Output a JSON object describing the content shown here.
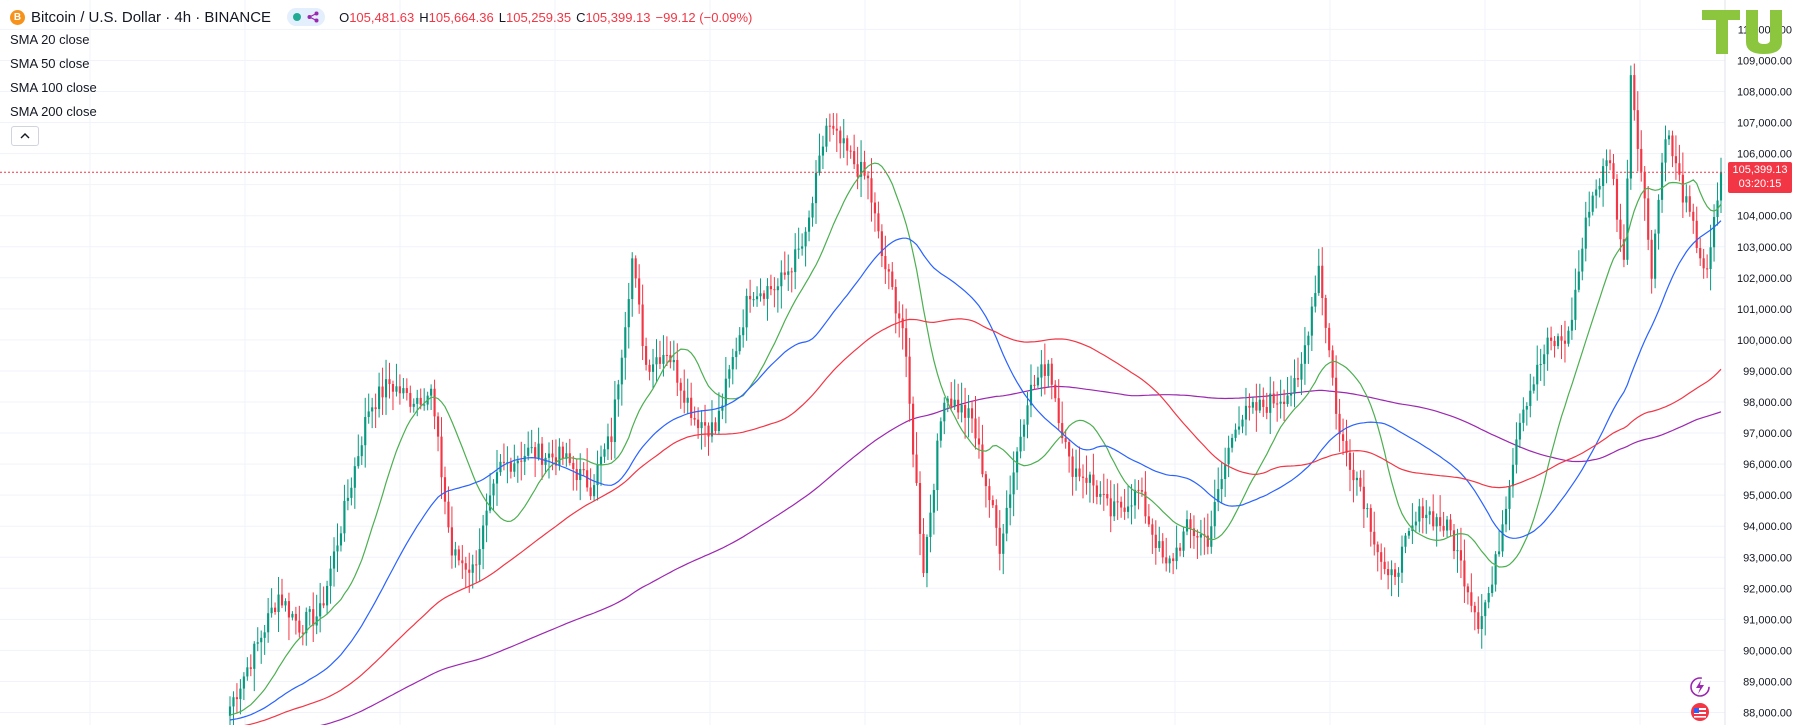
{
  "header": {
    "coin_letter": "B",
    "title": "Bitcoin / U.S. Dollar · 4h · BINANCE",
    "open_label": "O",
    "open": "105,481.63",
    "high_label": "H",
    "high": "105,664.36",
    "low_label": "L",
    "low": "105,259.35",
    "close_label": "C",
    "close": "105,399.13",
    "change": "−99.12 (−0.09%)"
  },
  "indicators": [
    "SMA 20 close",
    "SMA 50 close",
    "SMA 100 close",
    "SMA 200 close"
  ],
  "price_tag": {
    "price": "105,399.13",
    "countdown": "03:20:15"
  },
  "icons": {
    "share": "share-icon",
    "collapse": "chevron-up-icon",
    "alert": "lightning-icon",
    "flag": "flag-icon",
    "logo": "tradingview-logo"
  },
  "chart_data": {
    "type": "candlestick",
    "timeframe": "4h",
    "ylim": [
      87700,
      110200
    ],
    "ticks": [
      88000,
      89000,
      90000,
      91000,
      92000,
      93000,
      94000,
      95000,
      96000,
      97000,
      98000,
      99000,
      100000,
      101000,
      102000,
      103000,
      104000,
      105000,
      106000,
      107000,
      108000,
      109000,
      110000
    ],
    "tick_labels": [
      "88,000.00",
      "89,000.00",
      "90,000.00",
      "91,000.00",
      "92,000.00",
      "93,000.00",
      "94,000.00",
      "95,000.00",
      "96,000.00",
      "97,000.00",
      "98,000.00",
      "99,000.00",
      "100,000.00",
      "101,000.00",
      "102,000.00",
      "103,000.00",
      "104,000.00",
      "105,000.00",
      "106,000.00",
      "107,000.00",
      "108,000.00",
      "109,000.00",
      "110,000.00"
    ],
    "last_price": 105399.13,
    "close_anchors": [
      [
        0,
        88200
      ],
      [
        8,
        90200
      ],
      [
        14,
        91800
      ],
      [
        20,
        90800
      ],
      [
        26,
        91200
      ],
      [
        32,
        94000
      ],
      [
        40,
        97800
      ],
      [
        46,
        98600
      ],
      [
        52,
        98100
      ],
      [
        58,
        98300
      ],
      [
        64,
        93100
      ],
      [
        70,
        92600
      ],
      [
        78,
        95900
      ],
      [
        86,
        96400
      ],
      [
        96,
        96200
      ],
      [
        104,
        95300
      ],
      [
        110,
        96900
      ],
      [
        116,
        102600
      ],
      [
        120,
        99200
      ],
      [
        126,
        99700
      ],
      [
        134,
        97500
      ],
      [
        140,
        97100
      ],
      [
        150,
        101600
      ],
      [
        158,
        101700
      ],
      [
        166,
        103200
      ],
      [
        172,
        106900
      ],
      [
        178,
        106000
      ],
      [
        184,
        105100
      ],
      [
        188,
        102700
      ],
      [
        194,
        100400
      ],
      [
        200,
        92700
      ],
      [
        206,
        98300
      ],
      [
        214,
        97400
      ],
      [
        222,
        93400
      ],
      [
        230,
        98200
      ],
      [
        236,
        99300
      ],
      [
        242,
        96000
      ],
      [
        248,
        95500
      ],
      [
        254,
        94400
      ],
      [
        262,
        95100
      ],
      [
        270,
        92600
      ],
      [
        276,
        93900
      ],
      [
        282,
        93600
      ],
      [
        290,
        97400
      ],
      [
        300,
        98000
      ],
      [
        308,
        98500
      ],
      [
        314,
        102400
      ],
      [
        320,
        96900
      ],
      [
        326,
        95300
      ],
      [
        334,
        92100
      ],
      [
        344,
        94600
      ],
      [
        352,
        93800
      ],
      [
        360,
        91000
      ],
      [
        364,
        92100
      ],
      [
        372,
        97600
      ],
      [
        380,
        99800
      ],
      [
        386,
        100100
      ],
      [
        392,
        104400
      ],
      [
        398,
        105900
      ],
      [
        402,
        102400
      ],
      [
        404,
        108600
      ],
      [
        410,
        102300
      ],
      [
        414,
        106800
      ],
      [
        420,
        104300
      ],
      [
        426,
        102000
      ],
      [
        430,
        105400
      ]
    ],
    "series": [
      {
        "name": "SMA 20 close",
        "color": "#4caf50",
        "period": 20
      },
      {
        "name": "SMA 50 close",
        "color": "#2962ff",
        "period": 50
      },
      {
        "name": "SMA 100 close",
        "color": "#f23645",
        "period": 100
      },
      {
        "name": "SMA 200 close",
        "color": "#9c27b0",
        "period": 200
      }
    ],
    "colors": {
      "up": "#089981",
      "down": "#f23645",
      "grid": "#f0f3fa",
      "axis_text": "#131722"
    },
    "grid": true
  }
}
